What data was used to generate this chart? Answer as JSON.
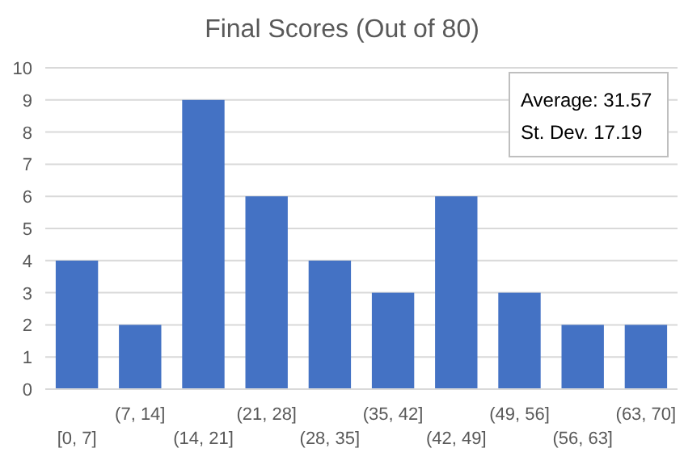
{
  "chart_data": {
    "type": "bar",
    "title": "Final Scores (Out of 80)",
    "categories": [
      "[0, 7]",
      "(7, 14]",
      "(14, 21]",
      "(21, 28]",
      "(28, 35]",
      "(35, 42]",
      "(42, 49]",
      "(49, 56]",
      "(56, 63]",
      "(63, 70]"
    ],
    "values": [
      4,
      2,
      9,
      6,
      4,
      3,
      6,
      3,
      2,
      2
    ],
    "color": "#4472c4",
    "ylim": [
      0,
      10
    ],
    "yticks": [
      0,
      1,
      2,
      3,
      4,
      5,
      6,
      7,
      8,
      9,
      10
    ],
    "grid": "y",
    "annotations": [
      "Average: 31.57",
      "St. Dev. 17.19"
    ]
  }
}
